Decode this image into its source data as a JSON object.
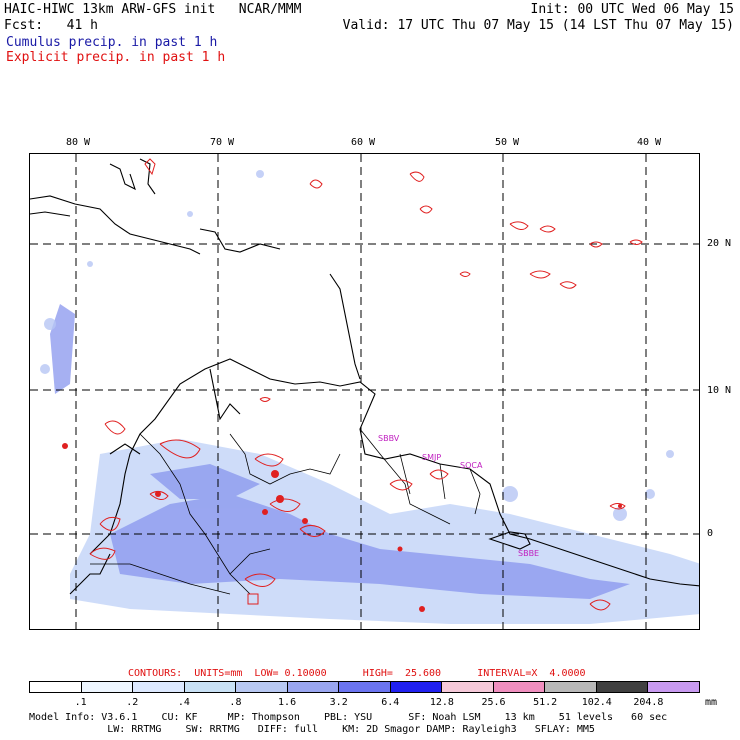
{
  "header": {
    "title": "HAIC-HIWC 13km ARW-GFS init   NCAR/MMM",
    "fcst": "Fcst:   41 h",
    "init": "Init: 00 UTC Wed 06 May 15",
    "valid": "Valid: 17 UTC Thu 07 May 15 (14 LST Thu 07 May 15)",
    "legend_cumulus": "Cumulus precip. in past 1 h",
    "legend_explicit": "Explicit precip. in past 1 h"
  },
  "map": {
    "lon_labels": [
      "80 W",
      "70 W",
      "60 W",
      "50 W",
      "40 W"
    ],
    "lat_labels": [
      "20 N",
      "10 N",
      "0"
    ],
    "stations": [
      "SBBV",
      "SMJP",
      "SOCA",
      "SBBE"
    ]
  },
  "contours": {
    "text": "CONTOURS:  UNITS=mm  LOW= 0.10000      HIGH=  25.600      INTERVAL=X  4.0000"
  },
  "colorbar": {
    "ticks": [
      ".1",
      ".2",
      ".4",
      ".8",
      "1.6",
      "3.2",
      "6.4",
      "12.8",
      "25.6",
      "51.2",
      "102.4",
      "204.8"
    ],
    "units": "mm",
    "colors": [
      "#ffffff",
      "#eef6ff",
      "#dde9ff",
      "#c9e1f5",
      "#b8c8f2",
      "#9aa6f0",
      "#6b74f0",
      "#2020f0",
      "#f5c9d9",
      "#f08fbf",
      "#b8b8b8",
      "#404040",
      "#c89af0"
    ]
  },
  "model_info": {
    "line1": "Model Info: V3.6.1    CU: KF     MP: Thompson    PBL: YSU      SF: Noah LSM    13 km    51 levels   60 sec",
    "line2": "             LW: RRTMG    SW: RRTMG   DIFF: full    KM: 2D Smagor DAMP: Rayleigh3   SFLAY: MM5"
  }
}
